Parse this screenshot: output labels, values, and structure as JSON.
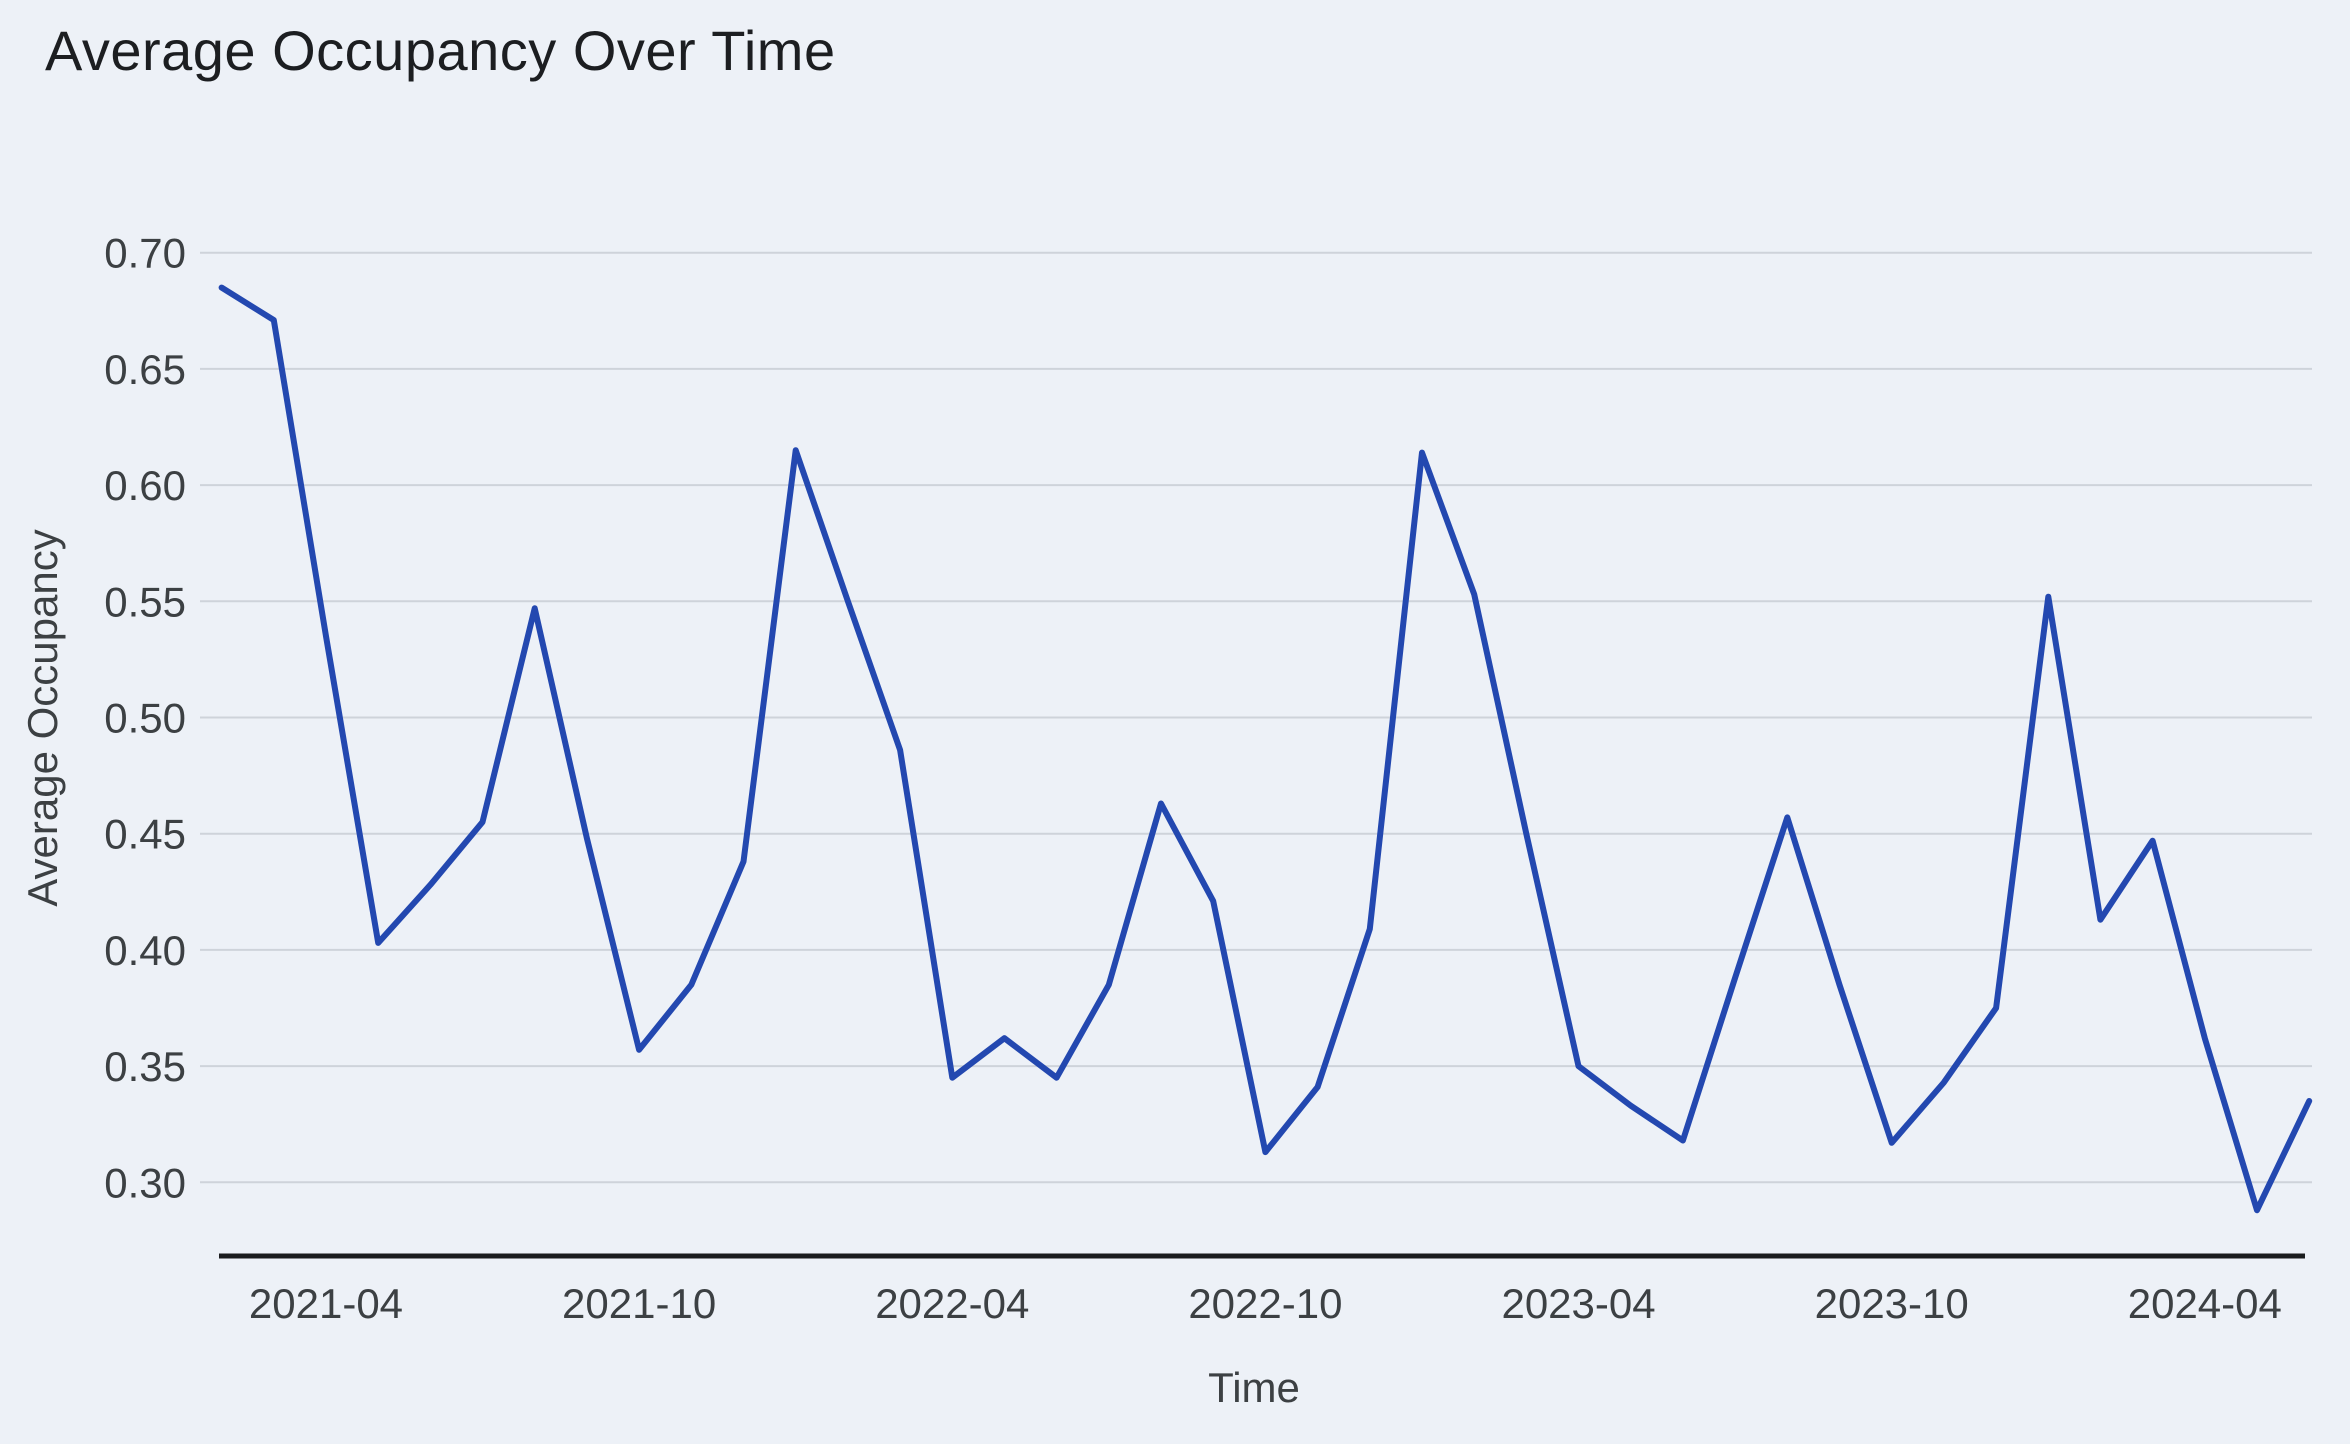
{
  "title": "Average Occupancy Over Time",
  "chart_data": {
    "type": "line",
    "title": "Average Occupancy Over Time",
    "xlabel": "Time",
    "ylabel": "Average Occupancy",
    "x": [
      "2021-02",
      "2021-03",
      "2021-04",
      "2021-05",
      "2021-06",
      "2021-07",
      "2021-08",
      "2021-09",
      "2021-10",
      "2021-11",
      "2021-12",
      "2022-01",
      "2022-02",
      "2022-03",
      "2022-04",
      "2022-05",
      "2022-06",
      "2022-07",
      "2022-08",
      "2022-09",
      "2022-10",
      "2022-11",
      "2022-12",
      "2023-01",
      "2023-02",
      "2023-03",
      "2023-04",
      "2023-05",
      "2023-06",
      "2023-07",
      "2023-08",
      "2023-09",
      "2023-10",
      "2023-11",
      "2023-12",
      "2024-01",
      "2024-02",
      "2024-03",
      "2024-04",
      "2024-05",
      "2024-06"
    ],
    "series": [
      {
        "name": "Average Occupancy",
        "values": [
          0.685,
          0.671,
          0.535,
          0.403,
          0.428,
          0.455,
          0.547,
          0.448,
          0.357,
          0.385,
          0.438,
          0.615,
          0.55,
          0.486,
          0.345,
          0.362,
          0.345,
          0.385,
          0.463,
          0.421,
          0.313,
          0.341,
          0.409,
          0.614,
          0.553,
          0.45,
          0.35,
          0.333,
          0.318,
          0.388,
          0.457,
          0.385,
          0.317,
          0.343,
          0.375,
          0.552,
          0.413,
          0.447,
          0.362,
          0.288,
          0.335
        ]
      }
    ],
    "ylim": [
      0.27,
      0.72
    ],
    "yticks": [
      "0.30",
      "0.35",
      "0.40",
      "0.45",
      "0.50",
      "0.55",
      "0.60",
      "0.65",
      "0.70"
    ],
    "xtick_labels": [
      "2021-04",
      "2021-10",
      "2022-04",
      "2022-10",
      "2023-04",
      "2023-10",
      "2024-04"
    ],
    "grid": true,
    "legend": "none",
    "line_color": "#2348b0",
    "background_color": "#edf1f7",
    "grid_color": "#ced3da",
    "axis_line_color": "#1a1c1e",
    "label_color": "#3c4043",
    "title_color": "#1c1e21"
  }
}
